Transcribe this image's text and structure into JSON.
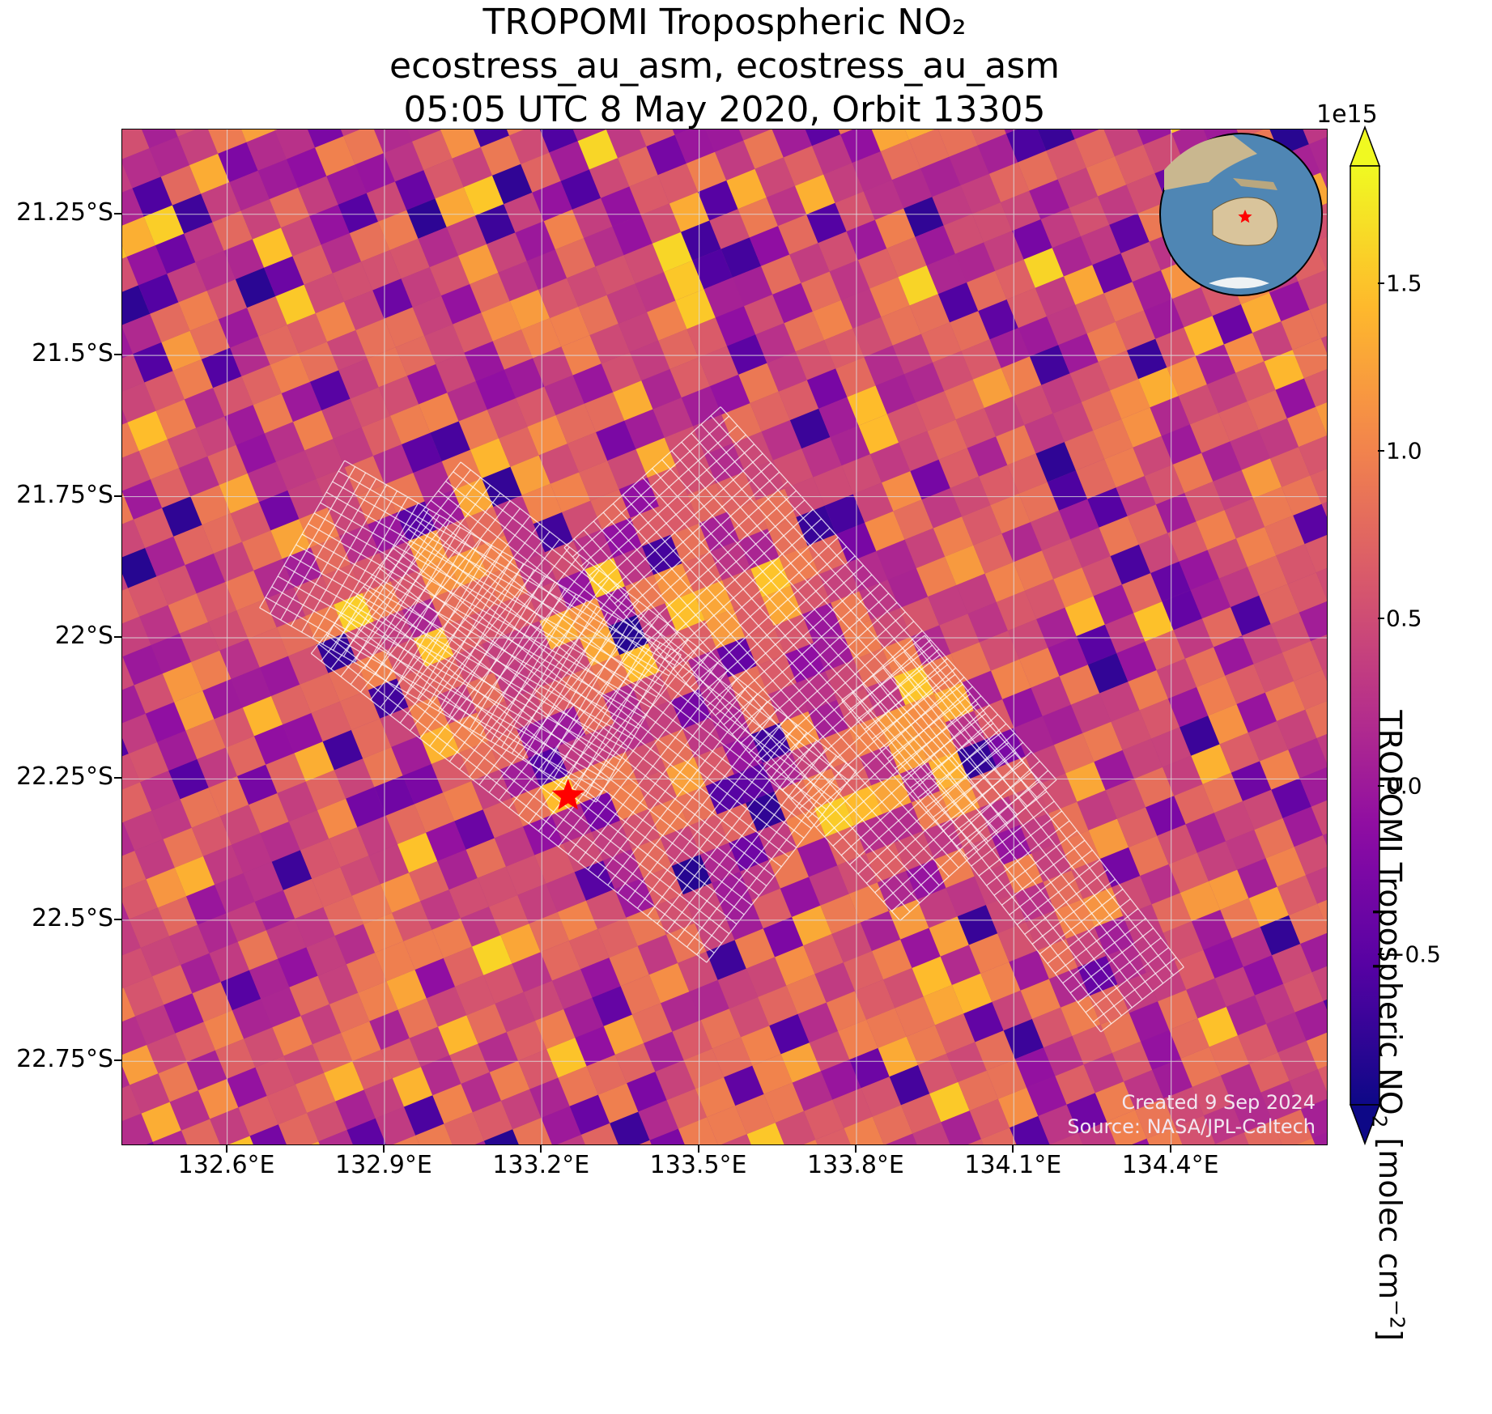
{
  "title": {
    "line1": "TROPOMI Tropospheric NO₂",
    "line2": "ecostress_au_asm, ecostress_au_asm",
    "line3": "05:05 UTC 8 May 2020, Orbit 13305"
  },
  "map": {
    "lat_range": [
      -22.9,
      -21.1
    ],
    "lon_range": [
      132.4,
      134.7
    ],
    "lat_ticks": [
      {
        "value": -21.25,
        "label": "21.25°S"
      },
      {
        "value": -21.5,
        "label": "21.5°S"
      },
      {
        "value": -21.75,
        "label": "21.75°S"
      },
      {
        "value": -22.0,
        "label": "22°S"
      },
      {
        "value": -22.25,
        "label": "22.25°S"
      },
      {
        "value": -22.5,
        "label": "22.5°S"
      },
      {
        "value": -22.75,
        "label": "22.75°S"
      }
    ],
    "lon_ticks": [
      {
        "value": 132.6,
        "label": "132.6°E"
      },
      {
        "value": 132.9,
        "label": "132.9°E"
      },
      {
        "value": 133.2,
        "label": "133.2°E"
      },
      {
        "value": 133.5,
        "label": "133.5°E"
      },
      {
        "value": 133.8,
        "label": "133.8°E"
      },
      {
        "value": 134.1,
        "label": "134.1°E"
      },
      {
        "value": 134.4,
        "label": "134.4°E"
      }
    ],
    "target_marker": {
      "lon": 133.25,
      "lat": -22.28,
      "color": "#ff0000",
      "icon": "star-icon"
    },
    "colormap": "plasma",
    "grid": true
  },
  "inset_globe": {
    "continent": "Australia",
    "marker_color": "#ff0000"
  },
  "colorbar": {
    "exponent_label": "1e15",
    "title_main": "TROPOMI Tropospheric NO",
    "title_sub": "2",
    "title_units_pre": " [molec cm",
    "title_units_sup": "−2",
    "title_units_post": "]",
    "min": -0.95,
    "max": 1.85,
    "ticks": [
      {
        "value": 1.5,
        "label": "1.5"
      },
      {
        "value": 1.0,
        "label": "1.0"
      },
      {
        "value": 0.5,
        "label": "0.5"
      },
      {
        "value": 0.0,
        "label": "0.0"
      },
      {
        "value": -0.5,
        "label": "−0.5"
      }
    ],
    "extend": "both"
  },
  "credits": {
    "created": "Created 9 Sep 2024",
    "source": "Source: NASA/JPL-Caltech"
  }
}
